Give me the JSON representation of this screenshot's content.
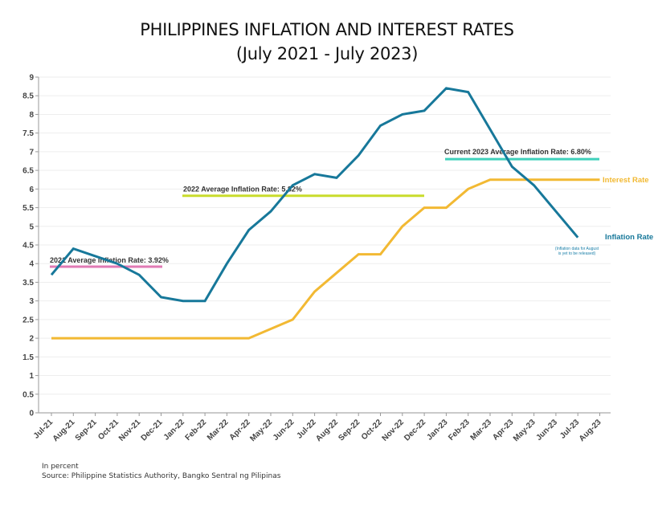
{
  "chart_data": {
    "type": "line",
    "title": "PHILIPPINES INFLATION AND INTEREST RATES",
    "subtitle": "(July 2021 - July 2023)",
    "xlabel": "",
    "ylabel": "",
    "ylim": [
      0,
      9
    ],
    "yticks": [
      0,
      0.5,
      1,
      1.5,
      2,
      2.5,
      3,
      3.5,
      4,
      4.5,
      5,
      5.5,
      6,
      6.5,
      7,
      7.5,
      8,
      8.5,
      9
    ],
    "ytick_labels": [
      "0",
      "0.5",
      "1",
      "1.5",
      "2",
      "2.5",
      "3",
      "3.5",
      "4",
      "4.5",
      "5",
      "5.5",
      "6",
      "6.5",
      "7",
      "7.5",
      "8",
      "8.5",
      "9"
    ],
    "grid": true,
    "categories": [
      "Jul-21",
      "Aug-21",
      "Sep-21",
      "Oct-21",
      "Nov-21",
      "Dec-21",
      "Jan-22",
      "Feb-22",
      "Mar-22",
      "Apr-22",
      "May-22",
      "Jun-22",
      "Jul-22",
      "Aug-22",
      "Sep-22",
      "Oct-22",
      "Nov-22",
      "Dec-22",
      "Jan-23",
      "Feb-23",
      "Mar-23",
      "Apr-23",
      "May-23",
      "Jun-23",
      "Jul-23",
      "Aug-23"
    ],
    "series": [
      {
        "name": "Inflation Rate",
        "color": "#17789a",
        "values": [
          3.7,
          4.4,
          4.2,
          4.0,
          3.7,
          3.1,
          3.0,
          3.0,
          4.0,
          4.9,
          5.4,
          6.1,
          6.4,
          6.3,
          6.9,
          7.7,
          8.0,
          8.1,
          8.7,
          8.6,
          7.6,
          6.6,
          6.1,
          5.4,
          4.7,
          null
        ]
      },
      {
        "name": "Interest Rate",
        "color": "#f2b933",
        "values": [
          2.0,
          2.0,
          2.0,
          2.0,
          2.0,
          2.0,
          2.0,
          2.0,
          2.0,
          2.0,
          2.25,
          2.5,
          3.25,
          3.75,
          4.25,
          4.25,
          5.0,
          5.5,
          5.5,
          6.0,
          6.25,
          6.25,
          6.25,
          6.25,
          6.25,
          6.25
        ]
      }
    ],
    "reference_lines": [
      {
        "label": "2021 Average Inflation Rate: 3.92%",
        "value": 3.92,
        "from": "Jul-21",
        "to": "Dec-21",
        "color": "#e07ab4"
      },
      {
        "label": "2022 Average Inflation Rate: 5.82%",
        "value": 5.82,
        "from": "Jan-22",
        "to": "Dec-22",
        "color": "#c9dc2c"
      },
      {
        "label": "Current 2023 Average Inflation Rate: 6.80%",
        "value": 6.8,
        "from": "Jan-23",
        "to": "Aug-23",
        "color": "#3fd0bb"
      }
    ],
    "annotations": [
      {
        "text_lines": [
          "(Inflation data for August",
          "is yet to be released)"
        ],
        "near": "Jul-23"
      }
    ],
    "legend": "inline-right"
  },
  "footer": {
    "unit_note": "In percent",
    "source": "Source: Philippine Statistics Authority, Bangko Sentral ng Pilipinas"
  }
}
